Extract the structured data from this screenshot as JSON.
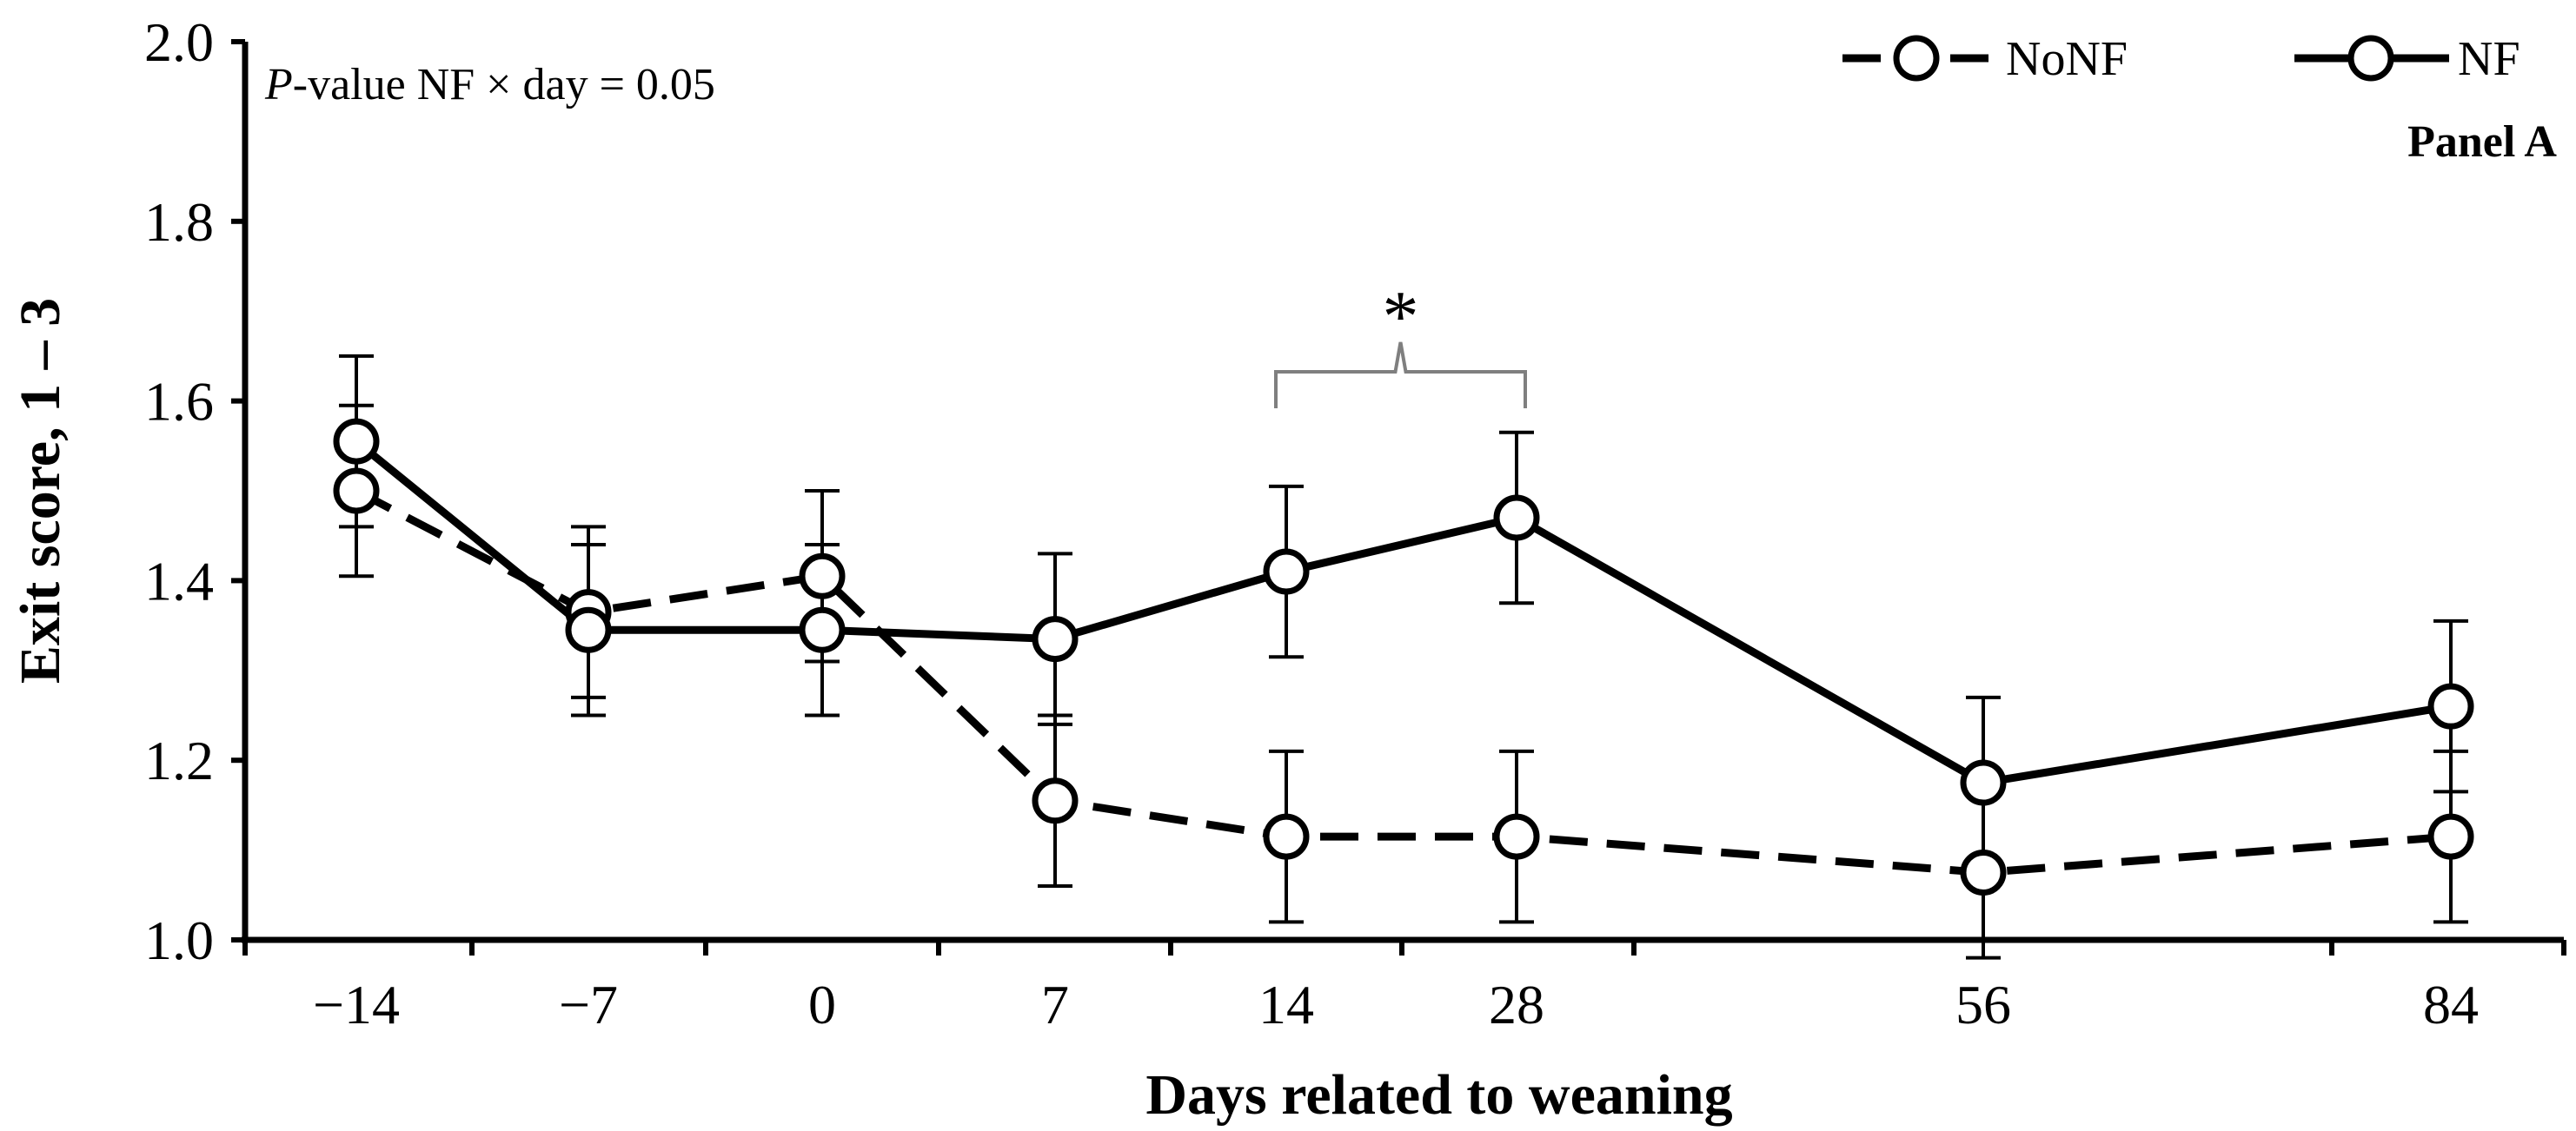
{
  "chart_data": {
    "type": "line",
    "title": "",
    "xlabel": "Days related to weaning",
    "ylabel": "Exit score, 1 – 3",
    "categories": [
      "−14",
      "−7",
      "0",
      "7",
      "14",
      "28",
      "56",
      "84"
    ],
    "ylim": [
      1.0,
      2.0
    ],
    "yticks": [
      "1.0",
      "1.2",
      "1.4",
      "1.6",
      "1.8",
      "2.0"
    ],
    "grid": false,
    "legend_position": "top-right",
    "series": [
      {
        "name": "NoNF",
        "style": "dashed",
        "values": [
          1.5,
          1.365,
          1.405,
          1.155,
          1.115,
          1.115,
          1.075,
          1.115
        ],
        "errors": [
          0.095,
          0.095,
          0.095,
          0.095,
          0.095,
          0.095,
          0.095,
          0.095
        ]
      },
      {
        "name": "NF",
        "style": "solid",
        "values": [
          1.555,
          1.345,
          1.345,
          1.335,
          1.41,
          1.47,
          1.175,
          1.26
        ],
        "errors": [
          0.095,
          0.095,
          0.095,
          0.095,
          0.095,
          0.095,
          0.095,
          0.095
        ]
      }
    ],
    "annotations": {
      "p_value_label": "-value NF × day = 0.05",
      "p_value_italic": "P",
      "panel_label": "Panel A",
      "significance_marker": "*",
      "significance_span": [
        "14",
        "28"
      ]
    },
    "colors": {
      "line": "#000000",
      "marker_fill": "#ffffff",
      "bracket": "#7f7f7f"
    }
  }
}
